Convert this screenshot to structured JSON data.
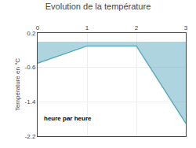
{
  "chart_data": {
    "type": "area",
    "title": "Evolution de la température",
    "ylabel": "Température en °C",
    "annotation": "heure par heure",
    "x": [
      0,
      1,
      2,
      3
    ],
    "values": [
      -0.5,
      -0.1,
      -0.1,
      -1.9
    ],
    "color": "#5baabf",
    "xlim": [
      0,
      3
    ],
    "ylim": [
      -2.2,
      0.2
    ],
    "xticks": [
      0,
      1,
      2,
      3
    ],
    "yticks": [
      0.2,
      -0.6,
      -1.4,
      -2.2
    ],
    "grid": true
  }
}
